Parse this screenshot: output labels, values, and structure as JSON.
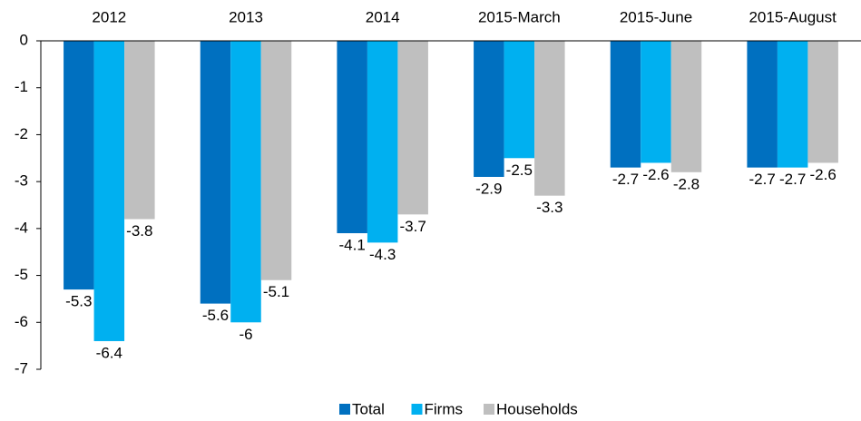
{
  "chart_data": {
    "type": "bar",
    "categories": [
      "2012",
      "2013",
      "2014",
      "2015-March",
      "2015-June",
      "2015-August"
    ],
    "series": [
      {
        "name": "Total",
        "color": "#0070c0",
        "values": [
          -5.3,
          -5.6,
          -4.1,
          -2.9,
          -2.7,
          -2.7
        ]
      },
      {
        "name": "Firms",
        "color": "#00b0f0",
        "values": [
          -6.4,
          -6,
          -4.3,
          -2.5,
          -2.6,
          -2.7
        ]
      },
      {
        "name": "Households",
        "color": "#bfbfbf",
        "values": [
          -3.8,
          -5.1,
          -3.7,
          -3.3,
          -2.8,
          -2.6
        ]
      }
    ],
    "ylim": [
      -7,
      0
    ],
    "yticks": [
      0,
      -1,
      -2,
      -3,
      -4,
      -5,
      -6,
      -7
    ],
    "grid": false,
    "legend": "bottom"
  }
}
